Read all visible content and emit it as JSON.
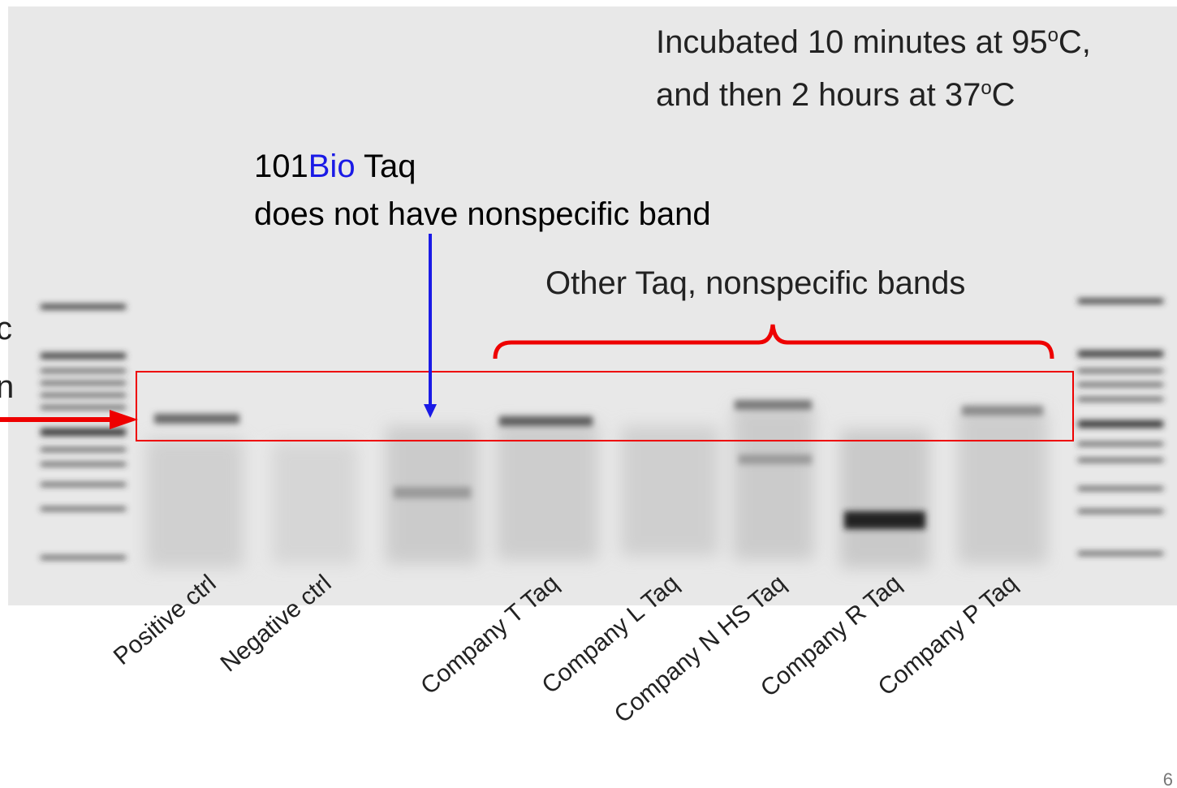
{
  "annotations": {
    "incubation": {
      "line1": [
        "Incubated 10 minutes at 95",
        "o",
        "C,"
      ],
      "line2": [
        "and then 2 hours at 37",
        "o",
        "C"
      ]
    },
    "highlight": {
      "line1": [
        "101",
        "Bio",
        " Taq"
      ],
      "line2": "does not have nonspecific band"
    },
    "other": "Other Taq,  nonspecific bands",
    "left_cut": [
      "c",
      "n"
    ]
  },
  "lanes": [
    "Positive ctrl",
    "Negative ctrl",
    "Company T Taq",
    "Company L Taq",
    "Company N HS Taq",
    "Company R Taq",
    "Company P Taq"
  ],
  "page_number": "6"
}
